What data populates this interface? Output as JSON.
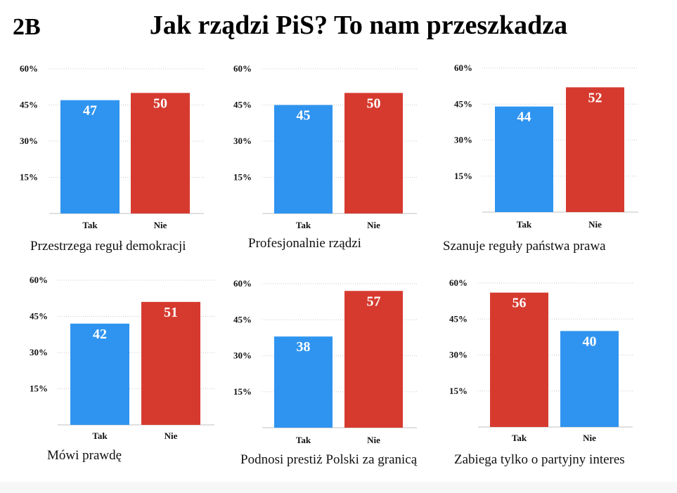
{
  "slide": {
    "label": "2B",
    "title": "Jak rządzi PiS? To nam przeszkadza"
  },
  "colors": {
    "blue": "#2f94f0",
    "red": "#d63a2f",
    "grid": "#c8c8c8",
    "axis": "#c0c0c0"
  },
  "chart_data": [
    {
      "type": "bar",
      "caption": "Przestrzega reguł demokracji",
      "categories": [
        "Tak",
        "Nie"
      ],
      "values": [
        47,
        50
      ],
      "bar_colors": [
        "blue",
        "red"
      ],
      "yticks": [
        "15%",
        "30%",
        "45%",
        "60%"
      ],
      "ylim": [
        0,
        60
      ],
      "grid": true
    },
    {
      "type": "bar",
      "caption": "Profesjonalnie rządzi",
      "categories": [
        "Tak",
        "Nie"
      ],
      "values": [
        45,
        50
      ],
      "bar_colors": [
        "blue",
        "red"
      ],
      "yticks": [
        "15%",
        "30%",
        "45%",
        "60%"
      ],
      "ylim": [
        0,
        60
      ],
      "grid": true
    },
    {
      "type": "bar",
      "caption": "Szanuje reguły państwa prawa",
      "categories": [
        "Tak",
        "Nie"
      ],
      "values": [
        44,
        52
      ],
      "bar_colors": [
        "blue",
        "red"
      ],
      "yticks": [
        "15%",
        "30%",
        "45%",
        "60%"
      ],
      "ylim": [
        0,
        60
      ],
      "grid": true
    },
    {
      "type": "bar",
      "caption": "Mówi prawdę",
      "categories": [
        "Tak",
        "Nie"
      ],
      "values": [
        42,
        51
      ],
      "bar_colors": [
        "blue",
        "red"
      ],
      "yticks": [
        "15%",
        "30%",
        "45%",
        "60%"
      ],
      "ylim": [
        0,
        60
      ],
      "grid": true
    },
    {
      "type": "bar",
      "caption": "Podnosi prestiż Polski za granicą",
      "categories": [
        "Tak",
        "Nie"
      ],
      "values": [
        38,
        57
      ],
      "bar_colors": [
        "blue",
        "red"
      ],
      "yticks": [
        "15%",
        "30%",
        "45%",
        "60%"
      ],
      "ylim": [
        0,
        60
      ],
      "grid": true
    },
    {
      "type": "bar",
      "caption": "Zabiega tylko o partyjny interes",
      "categories": [
        "Tak",
        "Nie"
      ],
      "values": [
        56,
        40
      ],
      "bar_colors": [
        "red",
        "blue"
      ],
      "yticks": [
        "15%",
        "30%",
        "45%",
        "60%"
      ],
      "ylim": [
        0,
        60
      ],
      "grid": true
    }
  ]
}
